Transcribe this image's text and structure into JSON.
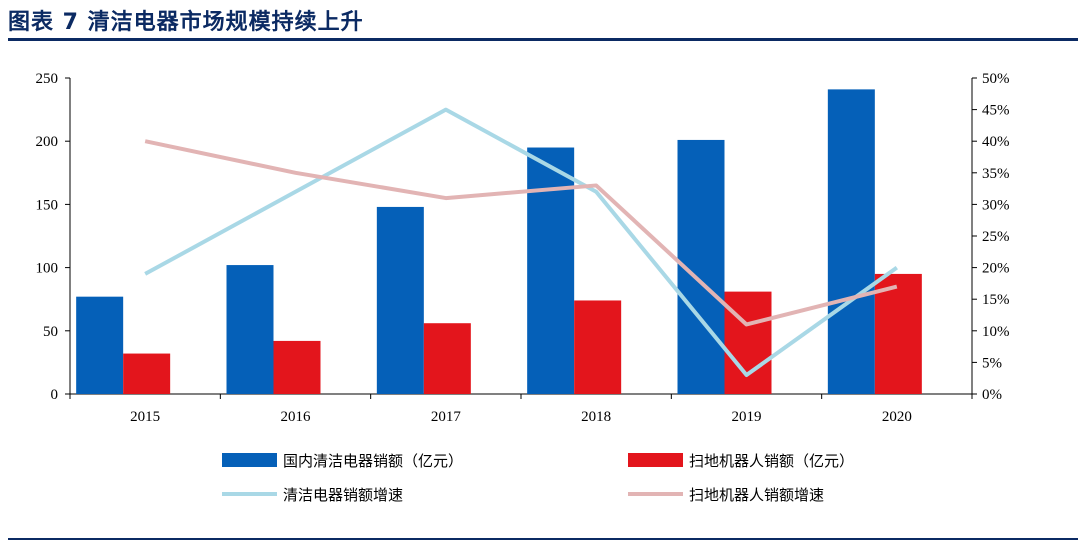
{
  "figure": {
    "title": "图表 7   清洁电器市场规模持续上升",
    "title_color": "#0b2a63"
  },
  "chart_data": {
    "type": "bar",
    "title": "",
    "categories": [
      "2015",
      "2016",
      "2017",
      "2018",
      "2019",
      "2020"
    ],
    "series": [
      {
        "name": "国内清洁电器销额（亿元）",
        "kind": "bar",
        "axis": "left",
        "color": "#0560b8",
        "values": [
          77,
          102,
          148,
          195,
          201,
          241
        ]
      },
      {
        "name": "扫地机器人销额（亿元）",
        "kind": "bar",
        "axis": "left",
        "color": "#e3151c",
        "values": [
          32,
          42,
          56,
          74,
          81,
          95
        ]
      },
      {
        "name": "清洁电器销额增速",
        "kind": "line",
        "axis": "right",
        "color": "#a9d8e6",
        "values": [
          0.19,
          0.32,
          0.45,
          0.32,
          0.03,
          0.2
        ]
      },
      {
        "name": "扫地机器人销额增速",
        "kind": "line",
        "axis": "right",
        "color": "#e2b4b4",
        "values": [
          0.4,
          0.35,
          0.31,
          0.33,
          0.11,
          0.17
        ]
      }
    ],
    "y_left": {
      "min": 0,
      "max": 250,
      "ticks": [
        "0",
        "50",
        "100",
        "150",
        "200",
        "250"
      ]
    },
    "y_right": {
      "min": 0,
      "max": 0.5,
      "ticks": [
        "0%",
        "5%",
        "10%",
        "15%",
        "20%",
        "25%",
        "30%",
        "35%",
        "40%",
        "45%",
        "50%"
      ]
    },
    "grid": false,
    "legend_position": "bottom"
  }
}
